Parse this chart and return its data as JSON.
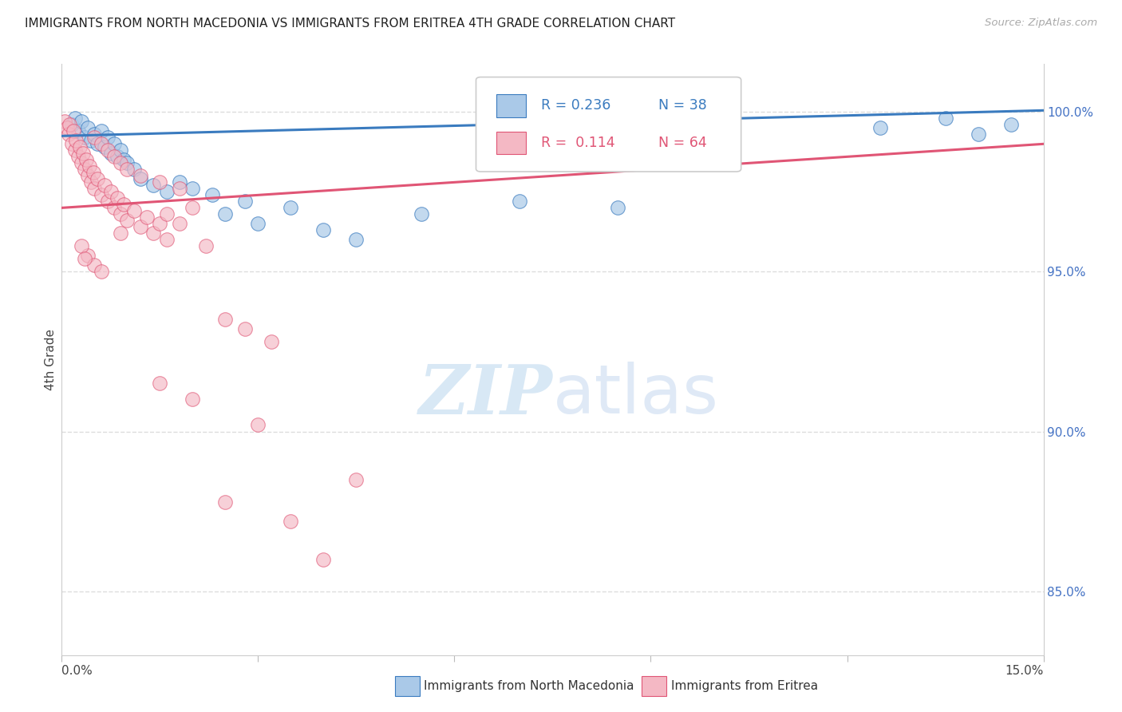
{
  "title": "IMMIGRANTS FROM NORTH MACEDONIA VS IMMIGRANTS FROM ERITREA 4TH GRADE CORRELATION CHART",
  "source": "Source: ZipAtlas.com",
  "ylabel": "4th Grade",
  "xmin": 0.0,
  "xmax": 15.0,
  "ymin": 83.0,
  "ymax": 101.5,
  "yticks": [
    85.0,
    90.0,
    95.0,
    100.0
  ],
  "ytick_labels": [
    "85.0%",
    "90.0%",
    "95.0%",
    "100.0%"
  ],
  "legend_blue_r": "R = 0.236",
  "legend_blue_n": "N = 38",
  "legend_pink_r": "R =  0.114",
  "legend_pink_n": "N = 64",
  "blue_color": "#aac9e8",
  "pink_color": "#f4b8c4",
  "blue_line_color": "#3a7bbf",
  "pink_line_color": "#e05575",
  "blue_scatter": [
    [
      0.15,
      99.6
    ],
    [
      0.2,
      99.8
    ],
    [
      0.25,
      99.4
    ],
    [
      0.3,
      99.7
    ],
    [
      0.35,
      99.2
    ],
    [
      0.4,
      99.5
    ],
    [
      0.45,
      99.1
    ],
    [
      0.5,
      99.3
    ],
    [
      0.55,
      99.0
    ],
    [
      0.6,
      99.4
    ],
    [
      0.65,
      98.9
    ],
    [
      0.7,
      99.2
    ],
    [
      0.75,
      98.7
    ],
    [
      0.8,
      99.0
    ],
    [
      0.85,
      98.6
    ],
    [
      0.9,
      98.8
    ],
    [
      0.95,
      98.5
    ],
    [
      1.0,
      98.4
    ],
    [
      1.1,
      98.2
    ],
    [
      1.2,
      97.9
    ],
    [
      1.4,
      97.7
    ],
    [
      1.6,
      97.5
    ],
    [
      1.8,
      97.8
    ],
    [
      2.0,
      97.6
    ],
    [
      2.3,
      97.4
    ],
    [
      2.5,
      96.8
    ],
    [
      2.8,
      97.2
    ],
    [
      3.0,
      96.5
    ],
    [
      3.5,
      97.0
    ],
    [
      4.0,
      96.3
    ],
    [
      4.5,
      96.0
    ],
    [
      5.5,
      96.8
    ],
    [
      7.0,
      97.2
    ],
    [
      8.5,
      97.0
    ],
    [
      12.5,
      99.5
    ],
    [
      13.5,
      99.8
    ],
    [
      14.0,
      99.3
    ],
    [
      14.5,
      99.6
    ]
  ],
  "pink_scatter": [
    [
      0.05,
      99.7
    ],
    [
      0.08,
      99.5
    ],
    [
      0.1,
      99.3
    ],
    [
      0.12,
      99.6
    ],
    [
      0.15,
      99.0
    ],
    [
      0.18,
      99.4
    ],
    [
      0.2,
      98.8
    ],
    [
      0.22,
      99.1
    ],
    [
      0.25,
      98.6
    ],
    [
      0.28,
      98.9
    ],
    [
      0.3,
      98.4
    ],
    [
      0.32,
      98.7
    ],
    [
      0.35,
      98.2
    ],
    [
      0.38,
      98.5
    ],
    [
      0.4,
      98.0
    ],
    [
      0.42,
      98.3
    ],
    [
      0.45,
      97.8
    ],
    [
      0.48,
      98.1
    ],
    [
      0.5,
      97.6
    ],
    [
      0.55,
      97.9
    ],
    [
      0.6,
      97.4
    ],
    [
      0.65,
      97.7
    ],
    [
      0.7,
      97.2
    ],
    [
      0.75,
      97.5
    ],
    [
      0.8,
      97.0
    ],
    [
      0.85,
      97.3
    ],
    [
      0.9,
      96.8
    ],
    [
      0.95,
      97.1
    ],
    [
      1.0,
      96.6
    ],
    [
      1.1,
      96.9
    ],
    [
      1.2,
      96.4
    ],
    [
      1.3,
      96.7
    ],
    [
      1.4,
      96.2
    ],
    [
      1.5,
      96.5
    ],
    [
      1.6,
      96.0
    ],
    [
      0.5,
      99.2
    ],
    [
      0.6,
      99.0
    ],
    [
      0.7,
      98.8
    ],
    [
      0.8,
      98.6
    ],
    [
      0.9,
      98.4
    ],
    [
      1.0,
      98.2
    ],
    [
      1.2,
      98.0
    ],
    [
      1.5,
      97.8
    ],
    [
      1.8,
      97.6
    ],
    [
      2.0,
      97.0
    ],
    [
      0.4,
      95.5
    ],
    [
      0.5,
      95.2
    ],
    [
      0.6,
      95.0
    ],
    [
      0.3,
      95.8
    ],
    [
      0.35,
      95.4
    ],
    [
      2.5,
      93.5
    ],
    [
      2.8,
      93.2
    ],
    [
      3.2,
      92.8
    ],
    [
      1.5,
      91.5
    ],
    [
      2.0,
      91.0
    ],
    [
      3.0,
      90.2
    ],
    [
      4.5,
      88.5
    ],
    [
      3.5,
      87.2
    ],
    [
      4.0,
      86.0
    ],
    [
      2.5,
      87.8
    ],
    [
      1.8,
      96.5
    ],
    [
      2.2,
      95.8
    ],
    [
      0.9,
      96.2
    ],
    [
      1.6,
      96.8
    ]
  ],
  "watermark_zip": "ZIP",
  "watermark_atlas": "atlas",
  "grid_color": "#dddddd"
}
